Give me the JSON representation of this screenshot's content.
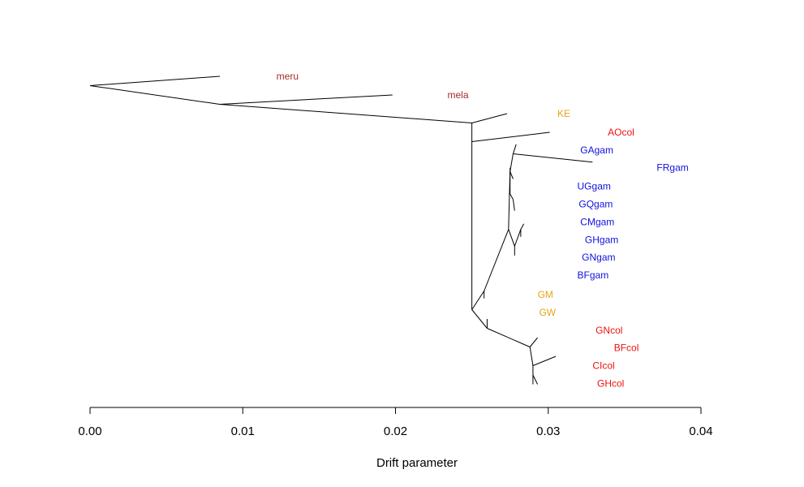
{
  "chart_data": {
    "type": "tree",
    "xlabel": "Drift parameter",
    "xlim": [
      0,
      0.04
    ],
    "x_ticks": [
      {
        "value": 0.0,
        "label": "0.00"
      },
      {
        "value": 0.01,
        "label": "0.01"
      },
      {
        "value": 0.02,
        "label": "0.02"
      },
      {
        "value": 0.03,
        "label": "0.03"
      },
      {
        "value": 0.04,
        "label": "0.04"
      }
    ],
    "grid": false,
    "colors": {
      "outgroup": "#a52a2a",
      "intermediate": "#e8a317",
      "col": "#ee1111",
      "gam": "#1111dd"
    },
    "branches": [
      {
        "x1": 0.0,
        "y1": 1.5,
        "x2": 0.0085,
        "y2": 1.0
      },
      {
        "x1": 0.0,
        "y1": 1.5,
        "x2": 0.0085,
        "y2": 2.5
      },
      {
        "x1": 0.0085,
        "y1": 2.5,
        "x2": 0.0198,
        "y2": 2.0
      },
      {
        "x1": 0.0085,
        "y1": 2.5,
        "x2": 0.025,
        "y2": 3.5
      },
      {
        "x1": 0.025,
        "y1": 3.5,
        "x2": 0.0273,
        "y2": 3.0
      },
      {
        "x1": 0.025,
        "y1": 3.5,
        "x2": 0.025,
        "y2": 4.5
      },
      {
        "x1": 0.025,
        "y1": 4.5,
        "x2": 0.0301,
        "y2": 4.0
      },
      {
        "x1": 0.025,
        "y1": 4.5,
        "x2": 0.025,
        "y2": 13.5
      },
      {
        "x1": 0.025,
        "y1": 13.5,
        "x2": 0.0258,
        "y2": 12.5
      },
      {
        "x1": 0.0258,
        "y1": 12.5,
        "x2": 0.0258,
        "y2": 12.9
      },
      {
        "x1": 0.0258,
        "y1": 12.5,
        "x2": 0.0274,
        "y2": 9.2
      },
      {
        "x1": 0.0274,
        "y1": 9.2,
        "x2": 0.0278,
        "y2": 10.1
      },
      {
        "x1": 0.0278,
        "y1": 10.1,
        "x2": 0.0282,
        "y2": 9.2
      },
      {
        "x1": 0.0282,
        "y1": 9.2,
        "x2": 0.0284,
        "y2": 8.9
      },
      {
        "x1": 0.0282,
        "y1": 9.2,
        "x2": 0.0282,
        "y2": 9.6
      },
      {
        "x1": 0.0278,
        "y1": 10.1,
        "x2": 0.0278,
        "y2": 10.6
      },
      {
        "x1": 0.0274,
        "y1": 9.2,
        "x2": 0.0275,
        "y2": 6.1
      },
      {
        "x1": 0.0275,
        "y1": 6.1,
        "x2": 0.0275,
        "y2": 5.9
      },
      {
        "x1": 0.0275,
        "y1": 6.1,
        "x2": 0.0275,
        "y2": 7.3
      },
      {
        "x1": 0.0275,
        "y1": 6.1,
        "x2": 0.0277,
        "y2": 6.5
      },
      {
        "x1": 0.0275,
        "y1": 7.3,
        "x2": 0.0277,
        "y2": 7.6
      },
      {
        "x1": 0.0277,
        "y1": 7.6,
        "x2": 0.0278,
        "y2": 8.2
      },
      {
        "x1": 0.0275,
        "y1": 6.1,
        "x2": 0.0277,
        "y2": 5.15
      },
      {
        "x1": 0.0277,
        "y1": 5.15,
        "x2": 0.0279,
        "y2": 4.65
      },
      {
        "x1": 0.0277,
        "y1": 5.15,
        "x2": 0.0329,
        "y2": 5.6
      },
      {
        "x1": 0.025,
        "y1": 13.5,
        "x2": 0.026,
        "y2": 14.5
      },
      {
        "x1": 0.026,
        "y1": 14.5,
        "x2": 0.026,
        "y2": 14.0
      },
      {
        "x1": 0.026,
        "y1": 14.5,
        "x2": 0.0288,
        "y2": 15.5
      },
      {
        "x1": 0.0288,
        "y1": 15.5,
        "x2": 0.0293,
        "y2": 15.0
      },
      {
        "x1": 0.0288,
        "y1": 15.5,
        "x2": 0.029,
        "y2": 16.5
      },
      {
        "x1": 0.029,
        "y1": 16.5,
        "x2": 0.0305,
        "y2": 16.0
      },
      {
        "x1": 0.029,
        "y1": 16.5,
        "x2": 0.029,
        "y2": 17.5
      },
      {
        "x1": 0.029,
        "y1": 17.0,
        "x2": 0.0293,
        "y2": 17.5
      }
    ],
    "tips": [
      {
        "label": "meru",
        "x": 0.0122,
        "y": 1.0,
        "group": "outgroup"
      },
      {
        "label": "mela",
        "x": 0.0234,
        "y": 2.0,
        "group": "outgroup"
      },
      {
        "label": "KE",
        "x": 0.0306,
        "y": 3.0,
        "group": "intermediate"
      },
      {
        "label": "AOcol",
        "x": 0.0339,
        "y": 4.0,
        "group": "col"
      },
      {
        "label": "GAgam",
        "x": 0.0321,
        "y": 4.95,
        "group": "gam"
      },
      {
        "label": "FRgam",
        "x": 0.0371,
        "y": 5.9,
        "group": "gam"
      },
      {
        "label": "UGgam",
        "x": 0.0319,
        "y": 6.9,
        "group": "gam"
      },
      {
        "label": "GQgam",
        "x": 0.032,
        "y": 7.85,
        "group": "gam"
      },
      {
        "label": "CMgam",
        "x": 0.0321,
        "y": 8.8,
        "group": "gam"
      },
      {
        "label": "GHgam",
        "x": 0.0324,
        "y": 9.75,
        "group": "gam"
      },
      {
        "label": "GNgam",
        "x": 0.0322,
        "y": 10.7,
        "group": "gam"
      },
      {
        "label": "BFgam",
        "x": 0.0319,
        "y": 11.65,
        "group": "gam"
      },
      {
        "label": "GM",
        "x": 0.0293,
        "y": 12.7,
        "group": "intermediate"
      },
      {
        "label": "GW",
        "x": 0.0294,
        "y": 13.65,
        "group": "intermediate"
      },
      {
        "label": "GNcol",
        "x": 0.0331,
        "y": 14.6,
        "group": "col"
      },
      {
        "label": "BFcol",
        "x": 0.0343,
        "y": 15.55,
        "group": "col"
      },
      {
        "label": "CIcol",
        "x": 0.0329,
        "y": 16.5,
        "group": "col"
      },
      {
        "label": "GHcol",
        "x": 0.0332,
        "y": 17.45,
        "group": "col"
      }
    ]
  }
}
